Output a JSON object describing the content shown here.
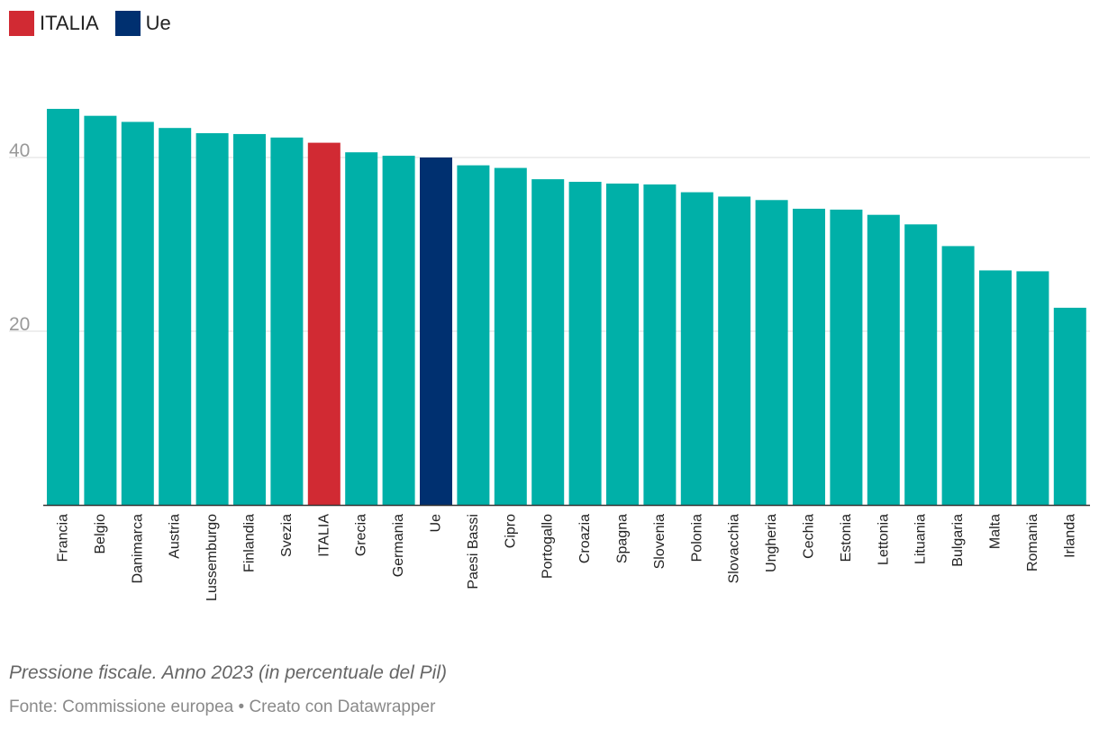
{
  "chart_data": {
    "type": "bar",
    "title": "Pressione fiscale. Anno 2023 (in percentuale del Pil)",
    "source": "Fonte: Commissione europea • Creato con Datawrapper",
    "legend": [
      {
        "label": "ITALIA",
        "color": "#d12a33"
      },
      {
        "label": "Ue",
        "color": "#003070"
      }
    ],
    "default_color": "#00b0a8",
    "ylim": [
      0,
      46
    ],
    "yticks": [
      20,
      40
    ],
    "grid": true,
    "categories": [
      "Francia",
      "Belgio",
      "Danimarca",
      "Austria",
      "Lussemburgo",
      "Finlandia",
      "Svezia",
      "ITALIA",
      "Grecia",
      "Germania",
      "Ue",
      "Paesi Bassi",
      "Cipro",
      "Portogallo",
      "Croazia",
      "Spagna",
      "Slovenia",
      "Polonia",
      "Slovacchia",
      "Ungheria",
      "Cechia",
      "Estonia",
      "Lettonia",
      "Lituania",
      "Bulgaria",
      "Malta",
      "Romania",
      "Irlanda"
    ],
    "values": [
      45.6,
      44.8,
      44.1,
      43.4,
      42.8,
      42.7,
      42.3,
      41.7,
      40.6,
      40.2,
      40.0,
      39.1,
      38.8,
      37.5,
      37.2,
      37.0,
      36.9,
      36.0,
      35.5,
      35.1,
      34.1,
      34.0,
      33.4,
      32.3,
      29.8,
      27.0,
      26.9,
      22.7
    ]
  }
}
